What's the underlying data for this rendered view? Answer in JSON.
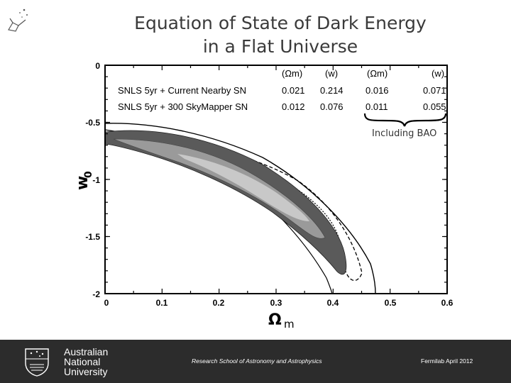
{
  "slide": {
    "title_line1": "Equation of State of Dark Energy",
    "title_line2": "in a Flat Universe"
  },
  "chart_data": {
    "type": "contour",
    "xlabel": "Ω",
    "xlabel_sub": "m",
    "ylabel": "w",
    "ylabel_sub": "0",
    "xlim": [
      0,
      0.6
    ],
    "ylim": [
      -2,
      0
    ],
    "xticks": [
      "0",
      "0.1",
      "0.2",
      "0.3",
      "0.4",
      "0.5",
      "0.6"
    ],
    "yticks": [
      "0",
      "-0.5",
      "-1",
      "-1.5",
      "-2"
    ],
    "table": {
      "headers": [
        "(Ωm)",
        "(w)",
        "(Ωm)",
        "(w)"
      ],
      "rows": [
        {
          "label": "SNLS 5yr + Current Nearby SN",
          "values": [
            "0.021",
            "0.214",
            "0.016",
            "0.071"
          ]
        },
        {
          "label": "SNLS 5yr + 300 SkyMapper SN",
          "values": [
            "0.012",
            "0.076",
            "0.011",
            "0.055"
          ]
        }
      ],
      "brace_label": "Including BAO"
    },
    "series": [
      {
        "style": "outer-solid",
        "color": "#000000",
        "x": [
          0.0,
          0.1,
          0.2,
          0.3,
          0.4,
          0.47,
          0.47
        ],
        "y": [
          -0.55,
          -0.6,
          -0.72,
          -0.95,
          -1.32,
          -1.75,
          -2.0
        ]
      },
      {
        "style": "dashed",
        "color": "#000000",
        "x": [
          0.02,
          0.1,
          0.2,
          0.3,
          0.4,
          0.43,
          0.45
        ],
        "y": [
          -0.65,
          -0.72,
          -0.85,
          -1.1,
          -1.35,
          -1.55,
          -1.75
        ]
      },
      {
        "style": "dark-filled",
        "color": "#555555",
        "x": [
          0.0,
          0.1,
          0.2,
          0.3,
          0.38,
          0.42,
          0.41
        ],
        "y": [
          -0.63,
          -0.7,
          -0.85,
          -1.1,
          -1.45,
          -1.68,
          -1.82
        ]
      },
      {
        "style": "light-filled",
        "color": "#bdbdbd",
        "x": [
          0.12,
          0.2,
          0.28,
          0.34
        ],
        "y": [
          -0.75,
          -0.85,
          -0.98,
          -1.15
        ]
      }
    ]
  },
  "footer": {
    "university_line1": "Australian",
    "university_line2": "National",
    "university_line3": "University",
    "center_text": "Research School of Astronomy and Astrophysics",
    "right_text": "Fermilab April 2012"
  },
  "colors": {
    "footer_bg": "#2c2c2c",
    "title": "#3a3a3a"
  }
}
